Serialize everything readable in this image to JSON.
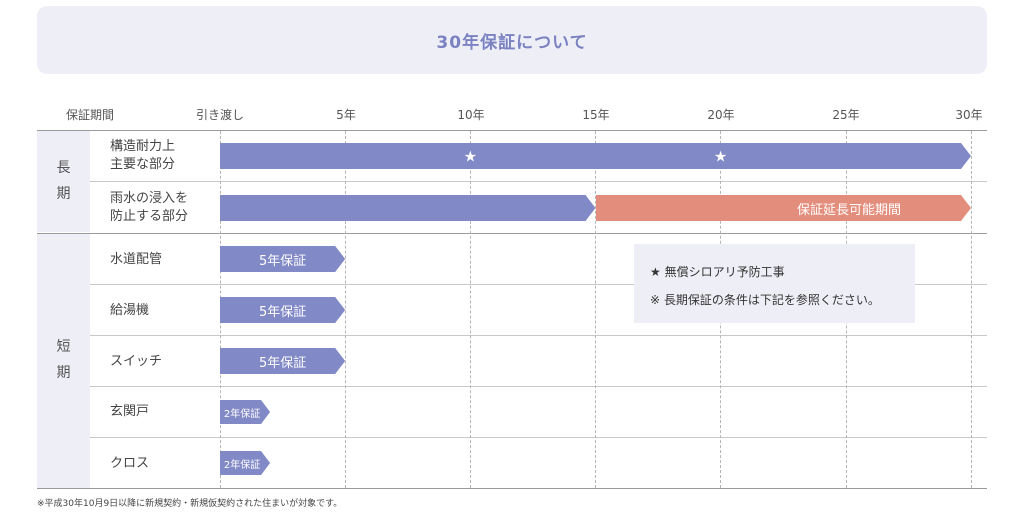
{
  "title": "30年保証について",
  "axis": {
    "period_label": "保証期間",
    "ticks": [
      "引き渡し",
      "5年",
      "10年",
      "15年",
      "20年",
      "25年",
      "30年"
    ]
  },
  "groups": {
    "long": "長\n期",
    "short": "短\n期"
  },
  "rows": [
    {
      "label": "構造耐力上\n主要な部分"
    },
    {
      "label": "雨水の浸入を\n防止する部分"
    },
    {
      "label": "水道配管"
    },
    {
      "label": "給湯機"
    },
    {
      "label": "スイッチ"
    },
    {
      "label": "玄関戸"
    },
    {
      "label": "クロス"
    }
  ],
  "bars": {
    "structure": {
      "label": "",
      "years": [
        0,
        30
      ]
    },
    "rain": {
      "label": "",
      "years": [
        0,
        15
      ]
    },
    "rain_extension": {
      "label": "保証延長可能期間",
      "years": [
        15,
        30
      ]
    },
    "water_pipe": {
      "label": "5年保証",
      "years": [
        0,
        5
      ]
    },
    "water_heater": {
      "label": "5年保証",
      "years": [
        0,
        5
      ]
    },
    "switch": {
      "label": "5年保証",
      "years": [
        0,
        5
      ]
    },
    "entrance_door": {
      "label": "2年保証",
      "years": [
        0,
        2
      ]
    },
    "wallpaper": {
      "label": "2年保証",
      "years": [
        0,
        2
      ]
    }
  },
  "stars": {
    "symbol": "★",
    "years": [
      10,
      20
    ]
  },
  "notes": [
    "★ 無償シロアリ予防工事",
    "※ 長期保証の条件は下記を参照ください。"
  ],
  "footnote": "※平成30年10月9日以降に新規契約・新規仮契約された住まいが対象です。",
  "colors": {
    "accent_blue": "#8189c6",
    "accent_salmon": "#e38e7d",
    "panel_bg": "#eeeef6"
  }
}
